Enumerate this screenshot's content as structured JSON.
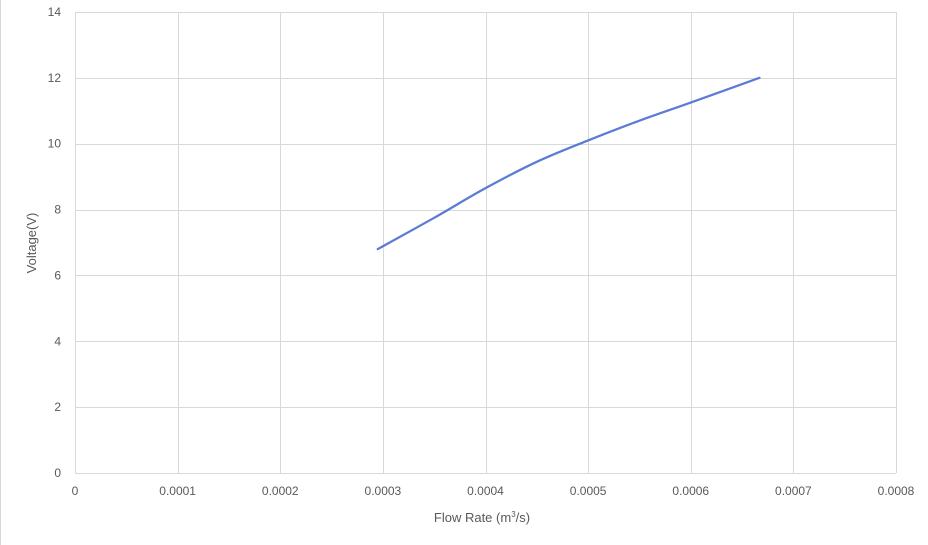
{
  "chart_data": {
    "type": "line",
    "title": "",
    "xlabel": "Flow Rate (m",
    "xlabel_sup": "3",
    "xlabel_suffix": "/s)",
    "ylabel": "Voltage(V)",
    "xlim": [
      0,
      0.0008
    ],
    "ylim": [
      0,
      14
    ],
    "x_ticks": [
      "0",
      "0.0001",
      "0.0002",
      "0.0003",
      "0.0004",
      "0.0005",
      "0.0006",
      "0.0007",
      "0.0008"
    ],
    "y_ticks": [
      "0",
      "2",
      "4",
      "6",
      "8",
      "10",
      "12",
      "14"
    ],
    "grid": true,
    "series": [
      {
        "color": "#5b7bd5",
        "x": [
          0.000295,
          0.00035,
          0.0004,
          0.00045,
          0.0005,
          0.00055,
          0.0006,
          0.000667
        ],
        "y": [
          6.8,
          7.75,
          8.65,
          9.45,
          10.1,
          10.7,
          11.25,
          12.0
        ]
      }
    ]
  }
}
